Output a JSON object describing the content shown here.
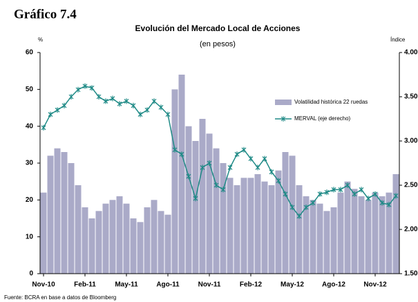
{
  "chart_data": {
    "type": "bar-line",
    "figure_label": "Gráfico 7.4",
    "title": "Evolución del Mercado Local de Acciones",
    "subtitle": "(en pesos)",
    "ylabel": "%",
    "y2label": "Índice",
    "source": "Fuente: BCRA en base a datos de Bloomberg",
    "categories": [
      "Nov-10",
      null,
      null,
      null,
      null,
      null,
      "Feb-11",
      null,
      null,
      null,
      null,
      null,
      "May-11",
      null,
      null,
      null,
      null,
      null,
      "Ago-11",
      null,
      null,
      null,
      null,
      null,
      "Nov-11",
      null,
      null,
      null,
      null,
      null,
      "Feb-12",
      null,
      null,
      null,
      null,
      null,
      "May-12",
      null,
      null,
      null,
      null,
      null,
      "Ago-12",
      null,
      null,
      null,
      null,
      null,
      "Nov-12",
      null,
      null,
      null
    ],
    "series": [
      {
        "name": "Volatilidad histórica 22 ruedas",
        "kind": "bar",
        "color": "#aaaac8",
        "values": [
          22,
          32,
          34,
          33,
          30,
          24,
          18,
          15,
          17,
          19,
          20,
          21,
          19,
          15,
          14,
          18,
          20,
          17,
          16,
          50,
          54,
          40,
          36,
          42,
          38,
          34,
          30,
          26,
          24,
          26,
          26,
          27,
          25,
          24,
          28,
          33,
          32,
          24,
          21,
          20,
          19,
          17,
          18,
          22,
          25,
          23,
          21,
          20,
          22,
          21,
          22,
          27
        ]
      },
      {
        "name": "MERVAL (eje derecho)",
        "kind": "line",
        "axis": "y2",
        "color": "#1f8a86",
        "values": [
          3150,
          3300,
          3350,
          3400,
          3500,
          3580,
          3620,
          3600,
          3500,
          3450,
          3480,
          3420,
          3450,
          3400,
          3300,
          3350,
          3450,
          3380,
          3300,
          2900,
          2850,
          2600,
          2350,
          2700,
          2750,
          2500,
          2450,
          2700,
          2850,
          2900,
          2800,
          2700,
          2800,
          2650,
          2550,
          2400,
          2250,
          2150,
          2250,
          2300,
          2400,
          2420,
          2450,
          2450,
          2500,
          2400,
          2450,
          2350,
          2400,
          2300,
          2280,
          2380
        ]
      }
    ],
    "ylim": [
      0,
      60
    ],
    "yticks": [
      0,
      10,
      20,
      30,
      40,
      50,
      60
    ],
    "y2lim": [
      1500,
      4000
    ],
    "y2ticks": [
      {
        "value": 1500,
        "label": "1.500"
      },
      {
        "value": 2000,
        "label": "2.000"
      },
      {
        "value": 2500,
        "label": "2.500"
      },
      {
        "value": 3000,
        "label": "3.000"
      },
      {
        "value": 3500,
        "label": "3.500"
      },
      {
        "value": 4000,
        "label": "4.000"
      }
    ],
    "grid": false,
    "legend": "right"
  }
}
